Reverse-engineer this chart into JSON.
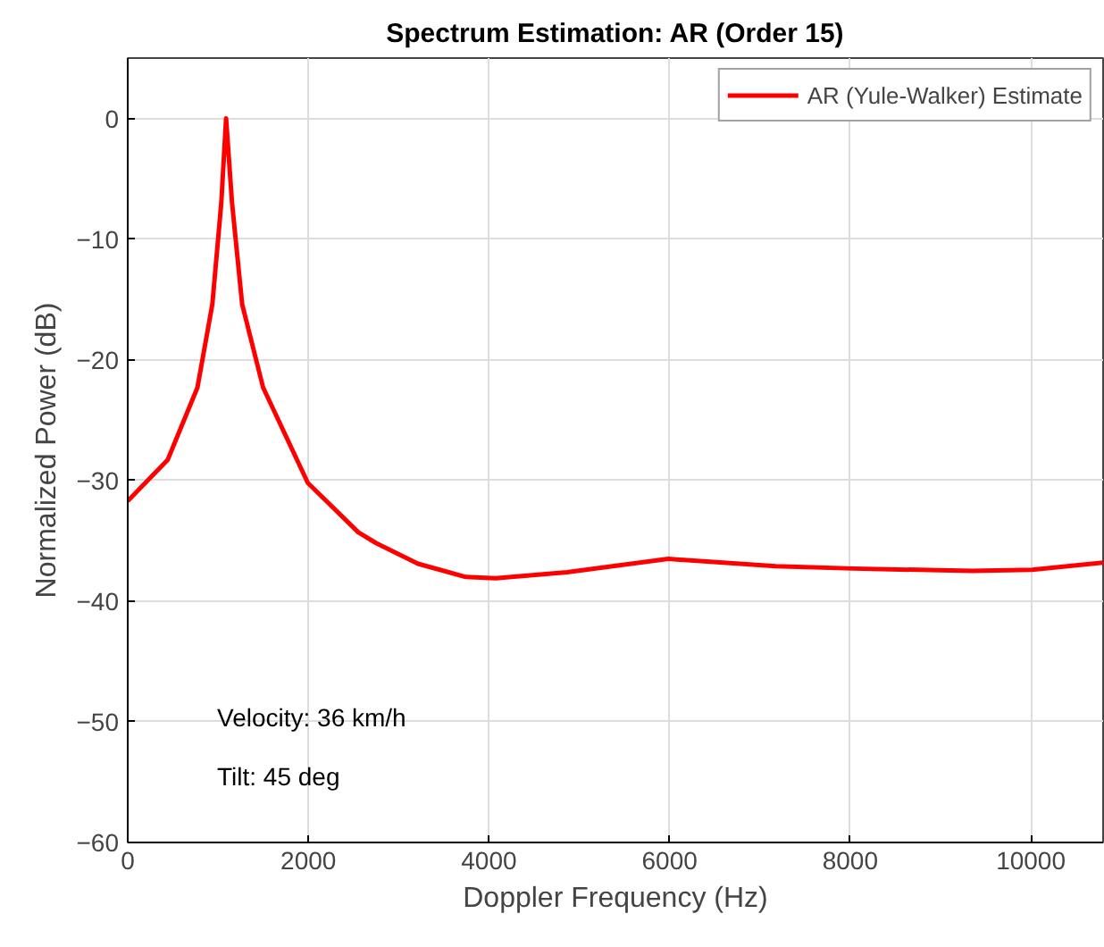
{
  "chart_data": {
    "type": "line",
    "title": "Spectrum Estimation: AR (Order 15)",
    "xlabel": "Doppler Frequency (Hz)",
    "ylabel": "Normalized Power (dB)",
    "x": [
      0,
      442,
      772,
      937,
      1036,
      1089,
      1155,
      1267,
      1499,
      1994,
      2554,
      2752,
      3214,
      3743,
      4073,
      4865,
      5986,
      7175,
      8034,
      9353,
      10014,
      10800
    ],
    "series": [
      {
        "name": "AR (Yule-Walker) Estimate",
        "color": "#ff0000",
        "values": [
          -31.7,
          -28.3,
          -22.3,
          -15.4,
          -7.0,
          0,
          -7.0,
          -15.4,
          -22.3,
          -30.2,
          -34.3,
          -35.2,
          -36.9,
          -38.0,
          -38.1,
          -37.6,
          -36.5,
          -37.1,
          -37.3,
          -37.5,
          -37.4,
          -36.8
        ]
      }
    ],
    "xlim": [
      0,
      10800
    ],
    "ylim": [
      -60,
      5
    ],
    "xticks": [
      0,
      2000,
      4000,
      6000,
      8000,
      10000
    ],
    "yticks": [
      -60,
      -50,
      -40,
      -30,
      -20,
      -10,
      0
    ],
    "grid": true,
    "legend": "top right",
    "marker": "none",
    "line_style": "solid",
    "annotations": [
      "Velocity: 36 km/h",
      "Tilt: 45 deg"
    ]
  }
}
